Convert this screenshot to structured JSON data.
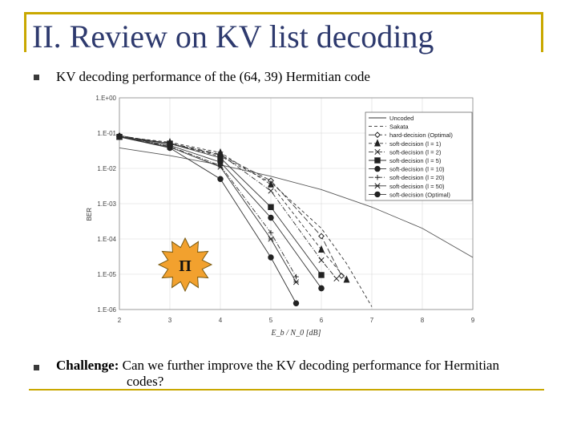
{
  "slide": {
    "title": "II. Review on KV list decoding",
    "bullet1": "KV decoding performance of the (64, 39) Hermitian code",
    "bullet2_lead": "Challenge:",
    "bullet2_text": " Can we further improve the KV decoding performance for Hermitian",
    "bullet2_cont": "codes?",
    "badge_text": "Π",
    "colors": {
      "accent_line": "#c9a800",
      "title": "#2e3a6e",
      "badge": "#f2a12e"
    }
  },
  "chart_data": {
    "type": "line",
    "xlabel": "E_b / N_0 [dB]",
    "ylabel": "BER",
    "xlim": [
      2,
      9
    ],
    "ylim": [
      1e-06,
      1
    ],
    "yscale": "log",
    "grid": true,
    "legend_position": "top-right",
    "xticks": [
      "2",
      "3",
      "4",
      "5",
      "6",
      "7",
      "8",
      "9"
    ],
    "yticks": [
      "1.E+00",
      "1.E-01",
      "1.E-02",
      "1.E-03",
      "1.E-04",
      "1.E-05",
      "1.E-06"
    ],
    "series": [
      {
        "name": "Uncoded",
        "marker": "none",
        "dash": "solid",
        "x": [
          2,
          3,
          4,
          5,
          6,
          7,
          8,
          9
        ],
        "y": [
          0.038,
          0.023,
          0.0125,
          0.006,
          0.0025,
          0.0008,
          0.0002,
          3e-05
        ]
      },
      {
        "name": "Sakata",
        "marker": "none",
        "dash": "dash",
        "x": [
          2,
          3,
          4,
          5,
          6,
          6.5,
          7
        ],
        "y": [
          0.085,
          0.05,
          0.022,
          0.004,
          0.0002,
          2e-05,
          1.2e-06
        ]
      },
      {
        "name": "hard-decision (Optimal)",
        "marker": "diamond",
        "dash": "longdash",
        "x": [
          2,
          3,
          4,
          5,
          6,
          6.4
        ],
        "y": [
          0.085,
          0.05,
          0.024,
          0.0045,
          0.00012,
          9e-06
        ]
      },
      {
        "name": "soft-decision (l = 1)",
        "marker": "triangle",
        "dash": "dash",
        "x": [
          2,
          3,
          4,
          5,
          6,
          6.5
        ],
        "y": [
          0.08,
          0.055,
          0.028,
          0.0035,
          5e-05,
          7e-06
        ]
      },
      {
        "name": "soft-decision (l = 2)",
        "marker": "x",
        "dash": "dashdot",
        "x": [
          2,
          3,
          4,
          5,
          6,
          6.3
        ],
        "y": [
          0.08,
          0.052,
          0.025,
          0.0023,
          2.5e-05,
          7.5e-06
        ]
      },
      {
        "name": "soft-decision (l = 5)",
        "marker": "square",
        "dash": "solid",
        "x": [
          2,
          3,
          4,
          5,
          6
        ],
        "y": [
          0.078,
          0.05,
          0.02,
          0.0008,
          9.5e-06
        ]
      },
      {
        "name": "soft-decision (l = 10)",
        "marker": "circle",
        "dash": "solid",
        "x": [
          2,
          3,
          4,
          5,
          6,
          6
        ],
        "y": [
          0.08,
          0.045,
          0.015,
          0.0004,
          4e-06,
          4e-06
        ]
      },
      {
        "name": "soft-decision (l = 20)",
        "marker": "plus",
        "dash": "dashdot",
        "x": [
          2,
          3,
          4,
          5,
          5.5
        ],
        "y": [
          0.078,
          0.042,
          0.012,
          0.00015,
          8.5e-06
        ]
      },
      {
        "name": "soft-decision (l = 50)",
        "marker": "star",
        "dash": "solid",
        "x": [
          2,
          3,
          4,
          5,
          5.5
        ],
        "y": [
          0.078,
          0.04,
          0.011,
          0.0001,
          6e-06
        ]
      },
      {
        "name": "soft-decision (Optimal)",
        "marker": "circle",
        "dash": "solid",
        "x": [
          2,
          3,
          4,
          5,
          5.5
        ],
        "y": [
          0.078,
          0.038,
          0.005,
          3e-05,
          1.5e-06
        ]
      }
    ]
  }
}
